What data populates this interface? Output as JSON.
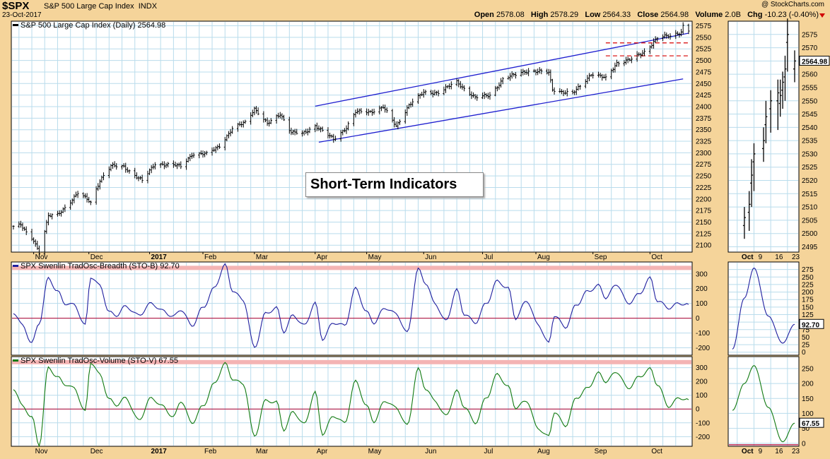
{
  "header": {
    "ticker": "$SPX",
    "name": "S&P 500 Large Cap Index",
    "exchange": "INDX",
    "date": "23-Oct-2017",
    "brand": "@ StockCharts.com",
    "open_label": "Open",
    "open": "2578.08",
    "high_label": "High",
    "high": "2578.29",
    "low_label": "Low",
    "low": "2564.33",
    "close_label": "Close",
    "close": "2564.98",
    "volume_label": "Volume",
    "volume": "2.0B",
    "chg_label": "Chg",
    "chg": "-10.23 (-0.40%)"
  },
  "annotation": "Short-Term Indicators",
  "colors": {
    "background": "#f5d49a",
    "plot_bg": "#ffffff",
    "grid": "#b9dcec",
    "price": "#000000",
    "trend": "#1f1fcf",
    "breadth": "#1f1f9f",
    "volume": "#117a11",
    "zero_line": "#b00030",
    "overbought_band": "#f4b4b4",
    "resistance": "#d60000"
  },
  "chart_data": [
    {
      "type": "ohlc",
      "id": "price",
      "legend": "S&P 500 Large Cap Index (Daily) 2564.98",
      "y_ticks": [
        2100,
        2125,
        2150,
        2175,
        2200,
        2225,
        2250,
        2275,
        2300,
        2325,
        2350,
        2375,
        2400,
        2425,
        2450,
        2475,
        2500,
        2525,
        2550,
        2575
      ],
      "ylim": [
        2085,
        2585
      ],
      "x_labels": [
        "Nov",
        "Dec",
        "2017",
        "Feb",
        "Mar",
        "Apr",
        "May",
        "Jun",
        "Jul",
        "Aug",
        "Sep",
        "Oct"
      ],
      "x_label_dates": [
        "2016-11-01",
        "2016-12-01",
        "2017-01-03",
        "2017-02-01",
        "2017-03-01",
        "2017-04-03",
        "2017-05-01",
        "2017-06-01",
        "2017-07-03",
        "2017-08-01",
        "2017-09-01",
        "2017-10-02"
      ],
      "x_range": [
        "2016-10-21",
        "2017-10-23"
      ],
      "series": [
        {
          "x": "2016-10-21",
          "close": 2141
        },
        {
          "x": "2016-10-25",
          "close": 2143
        },
        {
          "x": "2016-10-28",
          "close": 2126
        },
        {
          "x": "2016-11-01",
          "close": 2111
        },
        {
          "x": "2016-11-04",
          "close": 2085
        },
        {
          "x": "2016-11-07",
          "close": 2131
        },
        {
          "x": "2016-11-09",
          "close": 2163
        },
        {
          "x": "2016-11-14",
          "close": 2165
        },
        {
          "x": "2016-11-18",
          "close": 2182
        },
        {
          "x": "2016-11-25",
          "close": 2213
        },
        {
          "x": "2016-11-30",
          "close": 2199
        },
        {
          "x": "2016-12-02",
          "close": 2192
        },
        {
          "x": "2016-12-07",
          "close": 2241
        },
        {
          "x": "2016-12-13",
          "close": 2271
        },
        {
          "x": "2016-12-20",
          "close": 2270
        },
        {
          "x": "2016-12-30",
          "close": 2239
        },
        {
          "x": "2017-01-06",
          "close": 2277
        },
        {
          "x": "2017-01-13",
          "close": 2274
        },
        {
          "x": "2017-01-20",
          "close": 2271
        },
        {
          "x": "2017-01-26",
          "close": 2297
        },
        {
          "x": "2017-02-03",
          "close": 2297
        },
        {
          "x": "2017-02-10",
          "close": 2316
        },
        {
          "x": "2017-02-17",
          "close": 2351
        },
        {
          "x": "2017-02-24",
          "close": 2367
        },
        {
          "x": "2017-03-01",
          "close": 2396
        },
        {
          "x": "2017-03-08",
          "close": 2362
        },
        {
          "x": "2017-03-15",
          "close": 2385
        },
        {
          "x": "2017-03-21",
          "close": 2344
        },
        {
          "x": "2017-03-27",
          "close": 2341
        },
        {
          "x": "2017-04-03",
          "close": 2359
        },
        {
          "x": "2017-04-13",
          "close": 2329
        },
        {
          "x": "2017-04-20",
          "close": 2355
        },
        {
          "x": "2017-04-25",
          "close": 2388
        },
        {
          "x": "2017-05-03",
          "close": 2389
        },
        {
          "x": "2017-05-10",
          "close": 2399
        },
        {
          "x": "2017-05-17",
          "close": 2357
        },
        {
          "x": "2017-05-24",
          "close": 2404
        },
        {
          "x": "2017-06-01",
          "close": 2430
        },
        {
          "x": "2017-06-09",
          "close": 2431
        },
        {
          "x": "2017-06-19",
          "close": 2453
        },
        {
          "x": "2017-06-29",
          "close": 2419
        },
        {
          "x": "2017-07-07",
          "close": 2425
        },
        {
          "x": "2017-07-14",
          "close": 2459
        },
        {
          "x": "2017-07-26",
          "close": 2477
        },
        {
          "x": "2017-08-08",
          "close": 2474
        },
        {
          "x": "2017-08-10",
          "close": 2438
        },
        {
          "x": "2017-08-17",
          "close": 2430
        },
        {
          "x": "2017-08-21",
          "close": 2428
        },
        {
          "x": "2017-08-31",
          "close": 2471
        },
        {
          "x": "2017-09-08",
          "close": 2461
        },
        {
          "x": "2017-09-14",
          "close": 2495
        },
        {
          "x": "2017-09-22",
          "close": 2502
        },
        {
          "x": "2017-09-29",
          "close": 2519
        },
        {
          "x": "2017-10-06",
          "close": 2549
        },
        {
          "x": "2017-10-13",
          "close": 2553
        },
        {
          "x": "2017-10-19",
          "close": 2562
        },
        {
          "x": "2017-10-20",
          "close": 2575
        },
        {
          "x": "2017-10-23",
          "close": 2565
        }
      ],
      "trend_lines": [
        {
          "x": [
            "2017-04-03",
            "2017-10-23"
          ],
          "y": [
            2401,
            2559
          ]
        },
        {
          "x": [
            "2017-04-05",
            "2017-10-20"
          ],
          "y": [
            2323,
            2460
          ]
        }
      ],
      "resistance_levels": [
        2538,
        2510
      ]
    },
    {
      "type": "line",
      "id": "breadth",
      "legend": "SPX Swenlin TradOsc-Breadth (STO-B) 92.70",
      "y_ticks": [
        -200,
        -100,
        0,
        100,
        200,
        300
      ],
      "ylim": [
        -250,
        380
      ],
      "overbought": 340,
      "zero": 0,
      "series": [
        {
          "name": "STO-B",
          "x": [
            "2016-10-21",
            "2016-10-26",
            "2016-10-31",
            "2016-11-04",
            "2016-11-09",
            "2016-11-14",
            "2016-11-18",
            "2016-11-23",
            "2016-11-29",
            "2016-12-02",
            "2016-12-07",
            "2016-12-12",
            "2016-12-16",
            "2016-12-21",
            "2016-12-28",
            "2017-01-04",
            "2017-01-10",
            "2017-01-16",
            "2017-01-20",
            "2017-01-26",
            "2017-02-01",
            "2017-02-07",
            "2017-02-13",
            "2017-02-17",
            "2017-02-23",
            "2017-03-01",
            "2017-03-07",
            "2017-03-13",
            "2017-03-17",
            "2017-03-22",
            "2017-03-28",
            "2017-04-03",
            "2017-04-07",
            "2017-04-13",
            "2017-04-19",
            "2017-04-25",
            "2017-05-01",
            "2017-05-05",
            "2017-05-11",
            "2017-05-17",
            "2017-05-23",
            "2017-05-29",
            "2017-06-02",
            "2017-06-07",
            "2017-06-13",
            "2017-06-19",
            "2017-06-23",
            "2017-06-29",
            "2017-07-05",
            "2017-07-11",
            "2017-07-17",
            "2017-07-21",
            "2017-07-27",
            "2017-08-02",
            "2017-08-08",
            "2017-08-11",
            "2017-08-17",
            "2017-08-23",
            "2017-08-29",
            "2017-09-04",
            "2017-09-08",
            "2017-09-14",
            "2017-09-20",
            "2017-09-26",
            "2017-10-02",
            "2017-10-06",
            "2017-10-12",
            "2017-10-18",
            "2017-10-23"
          ],
          "y": [
            40,
            -50,
            -170,
            -30,
            270,
            180,
            100,
            90,
            -50,
            280,
            220,
            40,
            20,
            80,
            20,
            100,
            50,
            10,
            60,
            -50,
            70,
            200,
            360,
            190,
            120,
            -200,
            30,
            70,
            -90,
            20,
            -50,
            100,
            -140,
            -30,
            -50,
            200,
            40,
            -30,
            70,
            30,
            -100,
            330,
            240,
            100,
            -20,
            190,
            30,
            -30,
            100,
            250,
            200,
            0,
            120,
            -40,
            -170,
            20,
            -60,
            90,
            180,
            220,
            140,
            230,
            100,
            160,
            270,
            120,
            70,
            100,
            92.7
          ]
        }
      ]
    },
    {
      "type": "line",
      "id": "volume",
      "legend": "SPX Swenlin TradOsc-Volume (STO-V) 67.55",
      "y_ticks": [
        -200,
        -100,
        0,
        100,
        200,
        300
      ],
      "ylim": [
        -270,
        380
      ],
      "overbought": 340,
      "zero": 0,
      "series": [
        {
          "name": "STO-V",
          "x": [
            "2016-10-21",
            "2016-10-26",
            "2016-10-31",
            "2016-11-04",
            "2016-11-09",
            "2016-11-14",
            "2016-11-18",
            "2016-11-23",
            "2016-11-29",
            "2016-12-02",
            "2016-12-07",
            "2016-12-12",
            "2016-12-16",
            "2016-12-21",
            "2016-12-28",
            "2017-01-04",
            "2017-01-10",
            "2017-01-16",
            "2017-01-20",
            "2017-01-26",
            "2017-02-01",
            "2017-02-07",
            "2017-02-13",
            "2017-02-17",
            "2017-02-23",
            "2017-03-01",
            "2017-03-07",
            "2017-03-13",
            "2017-03-17",
            "2017-03-22",
            "2017-03-28",
            "2017-04-03",
            "2017-04-07",
            "2017-04-13",
            "2017-04-19",
            "2017-04-25",
            "2017-05-01",
            "2017-05-05",
            "2017-05-11",
            "2017-05-17",
            "2017-05-23",
            "2017-05-29",
            "2017-06-02",
            "2017-06-07",
            "2017-06-13",
            "2017-06-19",
            "2017-06-23",
            "2017-06-29",
            "2017-07-05",
            "2017-07-11",
            "2017-07-17",
            "2017-07-21",
            "2017-07-27",
            "2017-08-02",
            "2017-08-08",
            "2017-08-11",
            "2017-08-17",
            "2017-08-23",
            "2017-08-29",
            "2017-09-04",
            "2017-09-08",
            "2017-09-14",
            "2017-09-20",
            "2017-09-26",
            "2017-10-02",
            "2017-10-06",
            "2017-10-12",
            "2017-10-18",
            "2017-10-23"
          ],
          "y": [
            150,
            20,
            -60,
            -260,
            300,
            230,
            180,
            150,
            -20,
            340,
            250,
            70,
            30,
            80,
            -80,
            80,
            20,
            -60,
            60,
            -100,
            20,
            180,
            330,
            220,
            180,
            -200,
            60,
            50,
            -150,
            -20,
            -110,
            120,
            -180,
            -50,
            -100,
            200,
            20,
            -90,
            60,
            10,
            -120,
            290,
            150,
            60,
            -50,
            130,
            20,
            -100,
            80,
            250,
            160,
            10,
            60,
            -140,
            -200,
            -20,
            -120,
            80,
            150,
            260,
            200,
            270,
            150,
            230,
            290,
            180,
            20,
            80,
            67.55
          ]
        }
      ]
    },
    {
      "type": "ohlc",
      "id": "price-zoom",
      "x_labels": [
        "Oct",
        "9",
        "16",
        "23"
      ],
      "y_ticks": [
        2495,
        2500,
        2505,
        2510,
        2515,
        2520,
        2525,
        2530,
        2535,
        2540,
        2545,
        2550,
        2555,
        2560,
        2565,
        2570,
        2575
      ],
      "ylim": [
        2493,
        2580
      ],
      "last_value": "2564.98",
      "series": [
        {
          "x": "2017-10-02",
          "close": 2506
        },
        {
          "x": "2017-10-04",
          "close": 2511
        },
        {
          "x": "2017-10-05",
          "close": 2522
        },
        {
          "x": "2017-10-06",
          "close": 2530
        },
        {
          "x": "2017-10-10",
          "close": 2535
        },
        {
          "x": "2017-10-11",
          "close": 2544
        },
        {
          "x": "2017-10-13",
          "close": 2550
        },
        {
          "x": "2017-10-16",
          "close": 2553
        },
        {
          "x": "2017-10-17",
          "close": 2552
        },
        {
          "x": "2017-10-18",
          "close": 2557
        },
        {
          "x": "2017-10-19",
          "close": 2562
        },
        {
          "x": "2017-10-20",
          "close": 2575
        },
        {
          "x": "2017-10-23",
          "close": 2565
        }
      ]
    },
    {
      "type": "line",
      "id": "breadth-zoom",
      "y_ticks": [
        0,
        25,
        50,
        75,
        100,
        125,
        150,
        175,
        200,
        225,
        250,
        275
      ],
      "last_value": "92.70",
      "series": [
        {
          "name": "STO-B",
          "x": [
            "2017-09-27",
            "2017-10-02",
            "2017-10-06",
            "2017-10-12",
            "2017-10-18",
            "2017-10-23"
          ],
          "y": [
            10,
            180,
            280,
            120,
            30,
            92.7
          ]
        }
      ]
    },
    {
      "type": "line",
      "id": "volume-zoom",
      "x_labels": [
        "Oct",
        "9",
        "16",
        "23"
      ],
      "y_ticks": [
        0,
        50,
        100,
        150,
        200,
        250
      ],
      "last_value": "67.55",
      "series": [
        {
          "name": "STO-V",
          "x": [
            "2017-09-27",
            "2017-10-02",
            "2017-10-06",
            "2017-10-12",
            "2017-10-18",
            "2017-10-23"
          ],
          "y": [
            110,
            200,
            260,
            120,
            5,
            67.55
          ]
        }
      ]
    }
  ]
}
